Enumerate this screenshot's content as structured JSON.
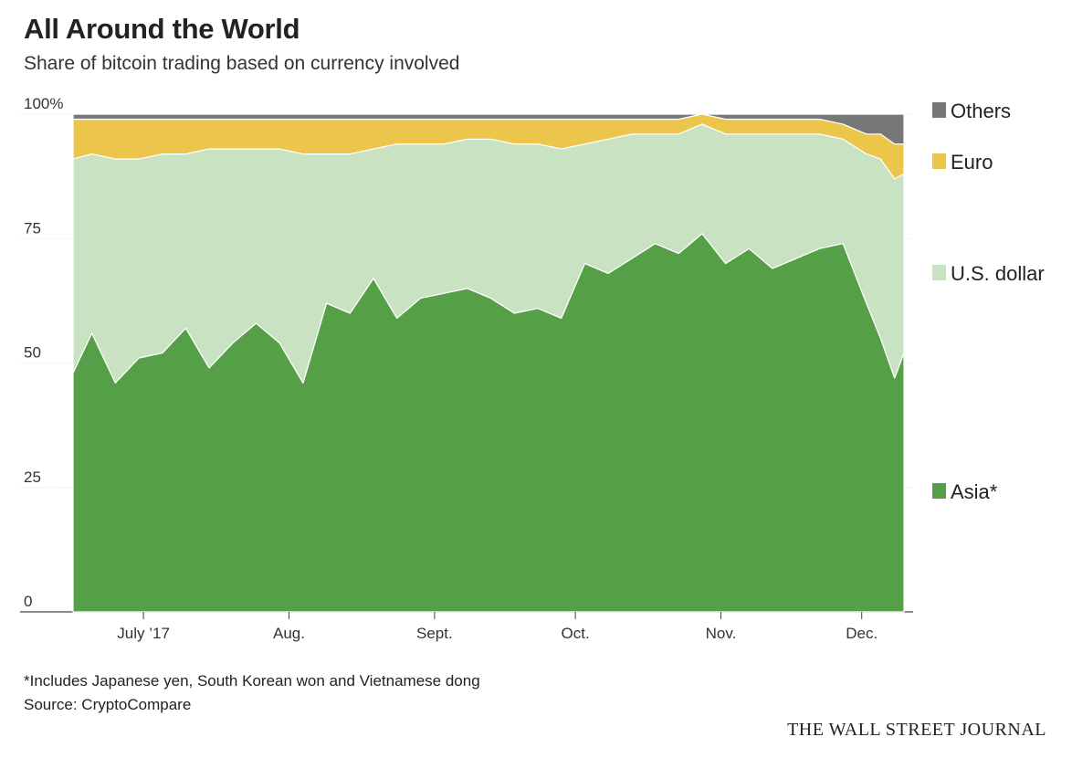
{
  "title": "All Around the World",
  "subtitle": "Share of bitcoin trading based on currency involved",
  "footnote": "*Includes Japanese yen, South Korean won and Vietnamese dong",
  "source": "Source: CryptoCompare",
  "credit": "THE WALL STREET JOURNAL",
  "chart_data": {
    "type": "area",
    "stacked": true,
    "ylim": [
      0,
      100
    ],
    "y_ticks": [
      {
        "value": 100,
        "label": "100%"
      },
      {
        "value": 75,
        "label": "75"
      },
      {
        "value": 50,
        "label": "50"
      },
      {
        "value": 25,
        "label": "25"
      },
      {
        "value": 0,
        "label": "0"
      }
    ],
    "x_ticks": [
      {
        "label": "July ’17",
        "value": "2017-07-01"
      },
      {
        "label": "Aug.",
        "value": "2017-08-01"
      },
      {
        "label": "Sept.",
        "value": "2017-09-01"
      },
      {
        "label": "Oct.",
        "value": "2017-10-01"
      },
      {
        "label": "Nov.",
        "value": "2017-11-01"
      },
      {
        "label": "Dec.",
        "value": "2017-12-01"
      }
    ],
    "xlim": [
      "2017-06-16",
      "2017-12-10"
    ],
    "legend_position": "right",
    "grid": "horizontal",
    "colors": {
      "asia": "#559f47",
      "usd": "#c9e2c1",
      "euro": "#ecc64b",
      "others": "#777777"
    },
    "series": [
      {
        "name": "Asia*",
        "key": "asia",
        "x": [
          "2017-06-16",
          "2017-06-20",
          "2017-06-25",
          "2017-06-30",
          "2017-07-05",
          "2017-07-10",
          "2017-07-15",
          "2017-07-20",
          "2017-07-25",
          "2017-07-30",
          "2017-08-04",
          "2017-08-09",
          "2017-08-14",
          "2017-08-19",
          "2017-08-24",
          "2017-08-29",
          "2017-09-03",
          "2017-09-08",
          "2017-09-13",
          "2017-09-18",
          "2017-09-23",
          "2017-09-28",
          "2017-10-03",
          "2017-10-08",
          "2017-10-13",
          "2017-10-18",
          "2017-10-23",
          "2017-10-28",
          "2017-11-02",
          "2017-11-07",
          "2017-11-12",
          "2017-11-17",
          "2017-11-22",
          "2017-11-27",
          "2017-12-02",
          "2017-12-05",
          "2017-12-08",
          "2017-12-10"
        ],
        "values": [
          48,
          56,
          46,
          51,
          52,
          57,
          49,
          54,
          58,
          54,
          46,
          62,
          60,
          67,
          59,
          63,
          64,
          65,
          63,
          60,
          61,
          59,
          70,
          68,
          71,
          74,
          72,
          76,
          70,
          73,
          69,
          71,
          73,
          74,
          62,
          55,
          47,
          52
        ]
      },
      {
        "name": "U.S. dollar",
        "key": "usd",
        "x": [
          "2017-06-16",
          "2017-06-20",
          "2017-06-25",
          "2017-06-30",
          "2017-07-05",
          "2017-07-10",
          "2017-07-15",
          "2017-07-20",
          "2017-07-25",
          "2017-07-30",
          "2017-08-04",
          "2017-08-09",
          "2017-08-14",
          "2017-08-19",
          "2017-08-24",
          "2017-08-29",
          "2017-09-03",
          "2017-09-08",
          "2017-09-13",
          "2017-09-18",
          "2017-09-23",
          "2017-09-28",
          "2017-10-03",
          "2017-10-08",
          "2017-10-13",
          "2017-10-18",
          "2017-10-23",
          "2017-10-28",
          "2017-11-02",
          "2017-11-07",
          "2017-11-12",
          "2017-11-17",
          "2017-11-22",
          "2017-11-27",
          "2017-12-02",
          "2017-12-05",
          "2017-12-08",
          "2017-12-10"
        ],
        "values": [
          43,
          36,
          45,
          40,
          40,
          35,
          44,
          39,
          35,
          39,
          46,
          30,
          32,
          26,
          35,
          31,
          30,
          30,
          32,
          34,
          33,
          34,
          24,
          27,
          25,
          22,
          24,
          22,
          26,
          23,
          27,
          25,
          23,
          21,
          30,
          36,
          40,
          36
        ]
      },
      {
        "name": "Euro",
        "key": "euro",
        "x": [
          "2017-06-16",
          "2017-06-20",
          "2017-06-25",
          "2017-06-30",
          "2017-07-05",
          "2017-07-10",
          "2017-07-15",
          "2017-07-20",
          "2017-07-25",
          "2017-07-30",
          "2017-08-04",
          "2017-08-09",
          "2017-08-14",
          "2017-08-19",
          "2017-08-24",
          "2017-08-29",
          "2017-09-03",
          "2017-09-08",
          "2017-09-13",
          "2017-09-18",
          "2017-09-23",
          "2017-09-28",
          "2017-10-03",
          "2017-10-08",
          "2017-10-13",
          "2017-10-18",
          "2017-10-23",
          "2017-10-28",
          "2017-11-02",
          "2017-11-07",
          "2017-11-12",
          "2017-11-17",
          "2017-11-22",
          "2017-11-27",
          "2017-12-02",
          "2017-12-05",
          "2017-12-08",
          "2017-12-10"
        ],
        "values": [
          8,
          7,
          8,
          8,
          7,
          7,
          6,
          6,
          6,
          6,
          7,
          7,
          7,
          6,
          5,
          5,
          5,
          4,
          4,
          5,
          5,
          6,
          5,
          4,
          3,
          3,
          3,
          2,
          3,
          3,
          3,
          3,
          3,
          3,
          4,
          5,
          7,
          6
        ]
      },
      {
        "name": "Others",
        "key": "others",
        "x": [
          "2017-06-16",
          "2017-06-20",
          "2017-06-25",
          "2017-06-30",
          "2017-07-05",
          "2017-07-10",
          "2017-07-15",
          "2017-07-20",
          "2017-07-25",
          "2017-07-30",
          "2017-08-04",
          "2017-08-09",
          "2017-08-14",
          "2017-08-19",
          "2017-08-24",
          "2017-08-29",
          "2017-09-03",
          "2017-09-08",
          "2017-09-13",
          "2017-09-18",
          "2017-09-23",
          "2017-09-28",
          "2017-10-03",
          "2017-10-08",
          "2017-10-13",
          "2017-10-18",
          "2017-10-23",
          "2017-10-28",
          "2017-11-02",
          "2017-11-07",
          "2017-11-12",
          "2017-11-17",
          "2017-11-22",
          "2017-11-27",
          "2017-12-02",
          "2017-12-05",
          "2017-12-08",
          "2017-12-10"
        ],
        "values": [
          1,
          1,
          1,
          1,
          1,
          1,
          1,
          1,
          1,
          1,
          1,
          1,
          1,
          1,
          1,
          1,
          1,
          1,
          1,
          1,
          1,
          1,
          1,
          1,
          1,
          1,
          1,
          0,
          1,
          1,
          1,
          1,
          1,
          2,
          4,
          4,
          6,
          6
        ]
      }
    ],
    "legend_order": [
      "others",
      "euro",
      "usd",
      "asia"
    ]
  }
}
